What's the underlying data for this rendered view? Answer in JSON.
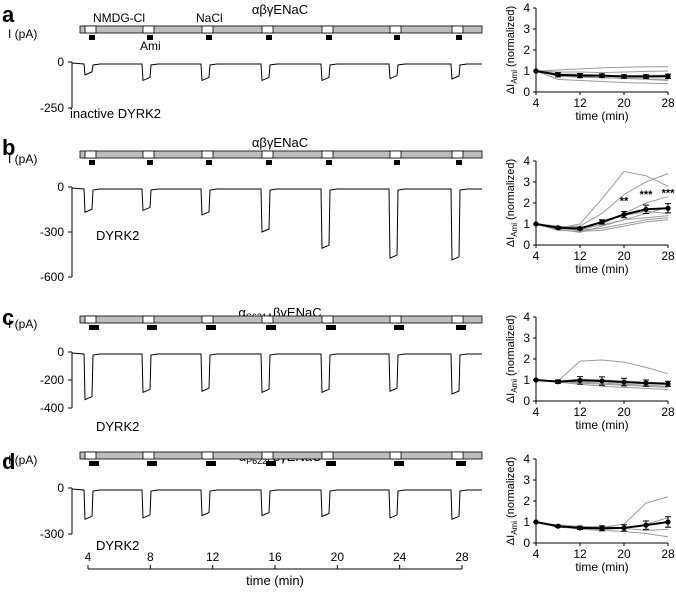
{
  "panels": [
    {
      "letter": "a",
      "title": "αβγENaC",
      "title_sub": "",
      "ylabel": "I (pA)",
      "y_ticks": [
        "0",
        "-250"
      ],
      "trace_label": "inactive DYRK2",
      "solution_labels": [
        "NMDG-Cl",
        "Ami",
        "NaCl"
      ],
      "sweep_depths": [
        0.28,
        0.4,
        0.4,
        0.4,
        0.4,
        0.36,
        0.37
      ],
      "chart_data": {
        "type": "line",
        "xlabel": "time (min)",
        "ylabel": "ΔI_Ami (normalized)",
        "x_ticks": [
          4,
          12,
          20,
          28
        ],
        "ylim": [
          0,
          4
        ],
        "y_ticks": [
          0,
          1,
          2,
          3,
          4
        ],
        "x": [
          4,
          8,
          12,
          16,
          20,
          24,
          28
        ],
        "series": [
          {
            "values": [
              1.0,
              0.82,
              0.78,
              0.78,
              0.74,
              0.74,
              0.75
            ],
            "errors": [
              0,
              0.1,
              0.1,
              0.08,
              0.08,
              0.08,
              0.1
            ]
          }
        ],
        "individual": [
          [
            1.0,
            1.05,
            1.1,
            1.15,
            1.18,
            1.2,
            1.2
          ],
          [
            1.0,
            0.95,
            0.95,
            0.92,
            0.95,
            0.98,
            1.0
          ],
          [
            1.0,
            0.75,
            0.7,
            0.68,
            0.65,
            0.6,
            0.55
          ],
          [
            1.0,
            0.8,
            0.72,
            0.7,
            0.65,
            0.62,
            0.6
          ],
          [
            1.0,
            0.6,
            0.55,
            0.5,
            0.45,
            0.42,
            0.4
          ],
          [
            1.0,
            0.85,
            0.85,
            0.8,
            0.78,
            0.8,
            0.8
          ]
        ],
        "significance": []
      }
    },
    {
      "letter": "b",
      "title": "αβγENaC",
      "title_sub": "",
      "ylabel": "I (pA)",
      "y_ticks": [
        "0",
        "-300",
        "-600"
      ],
      "trace_label": "DYRK2",
      "solution_labels": [],
      "sweep_depths": [
        0.28,
        0.26,
        0.31,
        0.5,
        0.68,
        0.79,
        0.81
      ],
      "chart_data": {
        "type": "line",
        "xlabel": "time (min)",
        "ylabel": "ΔI_Ami (normalized)",
        "x_ticks": [
          4,
          12,
          20,
          28
        ],
        "ylim": [
          0,
          4
        ],
        "y_ticks": [
          0,
          1,
          2,
          3,
          4
        ],
        "x": [
          4,
          8,
          12,
          16,
          20,
          24,
          28
        ],
        "series": [
          {
            "values": [
              1.0,
              0.82,
              0.78,
              1.1,
              1.45,
              1.7,
              1.75
            ],
            "errors": [
              0,
              0.05,
              0.06,
              0.1,
              0.15,
              0.2,
              0.22
            ]
          }
        ],
        "individual": [
          [
            1.0,
            0.8,
            1.0,
            2.2,
            3.5,
            3.3,
            2.8
          ],
          [
            1.0,
            0.85,
            0.9,
            1.5,
            2.4,
            3.0,
            3.4
          ],
          [
            1.0,
            0.8,
            0.7,
            1.0,
            1.5,
            2.0,
            2.3
          ],
          [
            1.0,
            0.75,
            0.6,
            0.9,
            1.2,
            1.5,
            1.8
          ],
          [
            1.0,
            0.9,
            0.8,
            1.1,
            1.4,
            1.6,
            1.5
          ],
          [
            1.0,
            0.85,
            0.7,
            0.8,
            1.0,
            1.2,
            1.3
          ],
          [
            1.0,
            0.7,
            0.65,
            0.7,
            0.9,
            1.1,
            1.2
          ],
          [
            1.0,
            0.9,
            0.85,
            0.95,
            1.2,
            1.3,
            1.4
          ]
        ],
        "significance": [
          {
            "x": 20,
            "label": "**"
          },
          {
            "x": 24,
            "label": "***"
          },
          {
            "x": 28,
            "label": "***"
          }
        ]
      }
    },
    {
      "letter": "c",
      "title": "βγENaC",
      "title_pre": "α",
      "title_sub": "S621A",
      "ylabel": "I (pA)",
      "y_ticks": [
        "0",
        "-200",
        "-400"
      ],
      "trace_label": "DYRK2",
      "solution_labels": [],
      "sweep_depths": [
        0.85,
        0.72,
        0.7,
        0.72,
        0.72,
        0.7,
        0.75
      ],
      "chart_data": {
        "type": "line",
        "xlabel": "time (min)",
        "ylabel": "ΔI_Ami (normalized)",
        "x_ticks": [
          4,
          12,
          20,
          28
        ],
        "ylim": [
          0,
          4
        ],
        "y_ticks": [
          0,
          1,
          2,
          3,
          4
        ],
        "x": [
          4,
          8,
          12,
          16,
          20,
          24,
          28
        ],
        "series": [
          {
            "values": [
              1.0,
              0.92,
              0.98,
              0.95,
              0.9,
              0.85,
              0.82
            ],
            "errors": [
              0,
              0.08,
              0.18,
              0.2,
              0.18,
              0.15,
              0.12
            ]
          }
        ],
        "individual": [
          [
            1.0,
            0.95,
            1.9,
            1.95,
            1.85,
            1.6,
            1.3
          ],
          [
            1.0,
            0.9,
            0.9,
            0.85,
            0.8,
            0.75,
            0.7
          ],
          [
            1.0,
            0.95,
            0.85,
            0.8,
            0.75,
            0.7,
            0.65
          ],
          [
            1.0,
            0.9,
            0.8,
            0.7,
            0.65,
            0.6,
            0.55
          ],
          [
            1.0,
            0.92,
            1.05,
            1.0,
            0.95,
            0.9,
            0.85
          ]
        ],
        "significance": []
      }
    },
    {
      "letter": "d",
      "title": "βγENaC",
      "title_pre": "α",
      "title_sub": "P622F",
      "ylabel": "I (pA)",
      "y_ticks": [
        "0",
        "-300"
      ],
      "trace_label": "DYRK2",
      "solution_labels": [],
      "sweep_depths": [
        0.68,
        0.65,
        0.6,
        0.6,
        0.62,
        0.65,
        0.68
      ],
      "chart_data": {
        "type": "line",
        "xlabel": "time (min)",
        "ylabel": "ΔI_Ami (normalized)",
        "x_ticks": [
          4,
          12,
          20,
          28
        ],
        "ylim": [
          0,
          4
        ],
        "y_ticks": [
          0,
          1,
          2,
          3,
          4
        ],
        "x": [
          4,
          8,
          12,
          16,
          20,
          24,
          28
        ],
        "series": [
          {
            "values": [
              1.0,
              0.8,
              0.72,
              0.7,
              0.72,
              0.85,
              1.0
            ],
            "errors": [
              0,
              0.05,
              0.08,
              0.12,
              0.15,
              0.2,
              0.25
            ]
          }
        ],
        "individual": [
          [
            1.0,
            0.85,
            0.8,
            0.75,
            0.9,
            1.9,
            2.2
          ],
          [
            1.0,
            0.75,
            0.7,
            0.65,
            0.7,
            0.9,
            1.2
          ],
          [
            1.0,
            0.8,
            0.65,
            0.6,
            0.55,
            0.45,
            0.3
          ],
          [
            1.0,
            0.82,
            0.75,
            0.8,
            0.7,
            0.6,
            0.65
          ]
        ],
        "significance": []
      }
    }
  ],
  "time_axis": {
    "label": "time (min)",
    "ticks": [
      "4",
      "8",
      "12",
      "16",
      "20",
      "24",
      "28"
    ]
  }
}
